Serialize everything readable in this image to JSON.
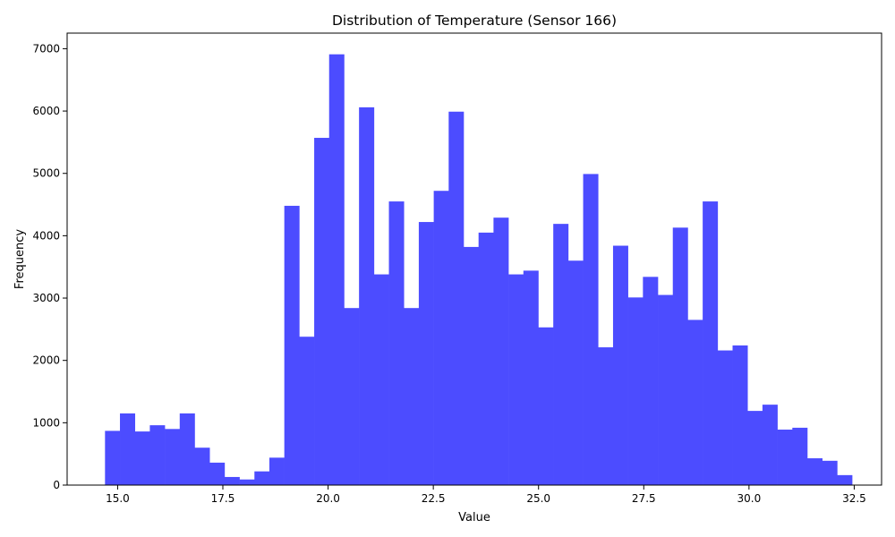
{
  "chart_data": {
    "type": "bar",
    "title": "Distribution of Temperature (Sensor 166)",
    "xlabel": "Value",
    "ylabel": "Frequency",
    "xlim": [
      13.8,
      33.15
    ],
    "ylim": [
      0,
      7250
    ],
    "xticks": [
      15.0,
      17.5,
      20.0,
      22.5,
      25.0,
      27.5,
      30.0,
      32.5
    ],
    "xtick_labels": [
      "15.0",
      "17.5",
      "20.0",
      "22.5",
      "25.0",
      "27.5",
      "30.0",
      "32.5"
    ],
    "yticks": [
      0,
      1000,
      2000,
      3000,
      4000,
      5000,
      6000,
      7000
    ],
    "ytick_labels": [
      "0",
      "1000",
      "2000",
      "3000",
      "4000",
      "5000",
      "6000",
      "7000"
    ],
    "bin_start": 14.7,
    "bin_width": 0.355,
    "values": [
      870,
      1150,
      860,
      960,
      900,
      1150,
      600,
      360,
      130,
      90,
      220,
      440,
      4480,
      2380,
      5570,
      6910,
      2840,
      6060,
      3380,
      4550,
      2840,
      4220,
      4720,
      5990,
      3820,
      4050,
      4290,
      3380,
      3440,
      2530,
      4190,
      3600,
      4990,
      2210,
      3840,
      3010,
      3340,
      3050,
      4130,
      2650,
      4550,
      2160,
      2240,
      1190,
      1290,
      890,
      920,
      430,
      390,
      160
    ],
    "bar_color": "#4c4cff",
    "grid": false,
    "legend": "none"
  }
}
